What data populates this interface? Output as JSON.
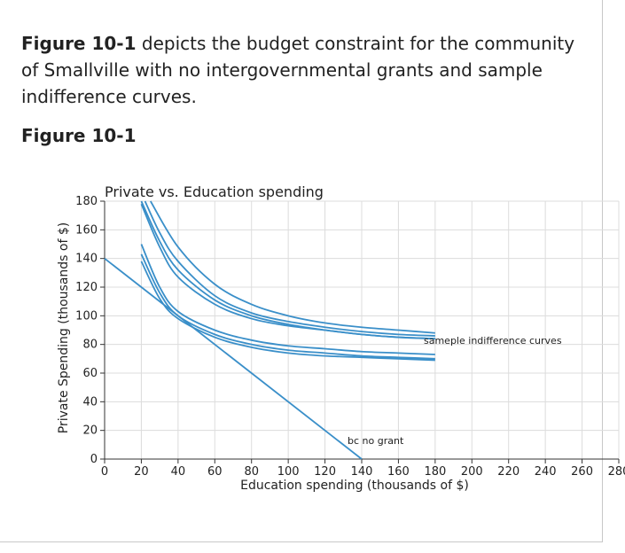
{
  "text": {
    "intro_bold": "Figure 10-1",
    "intro_rest": " depicts the budget constraint for the community of Smallville with no intergovernmental grants and sample indifference curves.",
    "figure_heading": "Figure 10-1"
  },
  "colors": {
    "line": "#3a8fc9",
    "grid": "#dcdcdc",
    "axis": "#333333",
    "text": "#222222"
  },
  "chart_data": {
    "type": "line",
    "title": "Private vs. Education spending",
    "xlabel": "Education spending (thousands of $)",
    "ylabel": "Private Spending (thousands of $)",
    "xlim": [
      0,
      280
    ],
    "ylim": [
      0,
      180
    ],
    "xticks": [
      0,
      20,
      40,
      60,
      80,
      100,
      120,
      140,
      160,
      180,
      200,
      220,
      240,
      260,
      280
    ],
    "yticks": [
      0,
      20,
      40,
      60,
      80,
      100,
      120,
      140,
      160,
      180
    ],
    "grid": true,
    "budget_constraint": {
      "label": "bc no grant",
      "points": [
        [
          0,
          140
        ],
        [
          140,
          0
        ]
      ]
    },
    "indifference_label": "sameple indifference curves",
    "series": [
      {
        "points": [
          [
            20,
            178
          ],
          [
            30,
            148
          ],
          [
            40,
            127
          ],
          [
            60,
            108
          ],
          [
            80,
            98
          ],
          [
            100,
            93
          ],
          [
            120,
            90
          ],
          [
            140,
            87
          ],
          [
            160,
            85
          ],
          [
            180,
            84
          ]
        ]
      },
      {
        "points": [
          [
            20,
            180
          ],
          [
            30,
            152
          ],
          [
            40,
            132
          ],
          [
            60,
            111
          ],
          [
            80,
            100
          ],
          [
            100,
            94
          ],
          [
            120,
            90
          ],
          [
            140,
            87
          ],
          [
            160,
            85
          ],
          [
            180,
            84
          ]
        ]
      },
      {
        "points": [
          [
            22,
            180
          ],
          [
            30,
            158
          ],
          [
            40,
            138
          ],
          [
            60,
            114
          ],
          [
            80,
            102
          ],
          [
            100,
            96
          ],
          [
            120,
            92
          ],
          [
            140,
            89
          ],
          [
            160,
            87
          ],
          [
            180,
            86
          ]
        ]
      },
      {
        "points": [
          [
            25,
            180
          ],
          [
            40,
            148
          ],
          [
            60,
            122
          ],
          [
            80,
            108
          ],
          [
            100,
            100
          ],
          [
            120,
            95
          ],
          [
            140,
            92
          ],
          [
            160,
            90
          ],
          [
            180,
            88
          ]
        ]
      },
      {
        "points": [
          [
            20,
            150
          ],
          [
            30,
            120
          ],
          [
            40,
            103
          ],
          [
            60,
            90
          ],
          [
            80,
            83
          ],
          [
            100,
            79
          ],
          [
            120,
            77
          ],
          [
            140,
            75
          ],
          [
            160,
            74
          ],
          [
            180,
            73
          ]
        ]
      },
      {
        "points": [
          [
            20,
            143
          ],
          [
            30,
            116
          ],
          [
            40,
            100
          ],
          [
            60,
            87
          ],
          [
            80,
            80
          ],
          [
            100,
            76
          ],
          [
            120,
            74
          ],
          [
            140,
            72
          ],
          [
            160,
            71
          ],
          [
            180,
            70
          ]
        ]
      },
      {
        "points": [
          [
            20,
            138
          ],
          [
            30,
            112
          ],
          [
            40,
            98
          ],
          [
            60,
            85
          ],
          [
            80,
            78
          ],
          [
            100,
            74
          ],
          [
            120,
            72
          ],
          [
            140,
            71
          ],
          [
            160,
            70
          ],
          [
            180,
            69
          ]
        ]
      }
    ]
  }
}
